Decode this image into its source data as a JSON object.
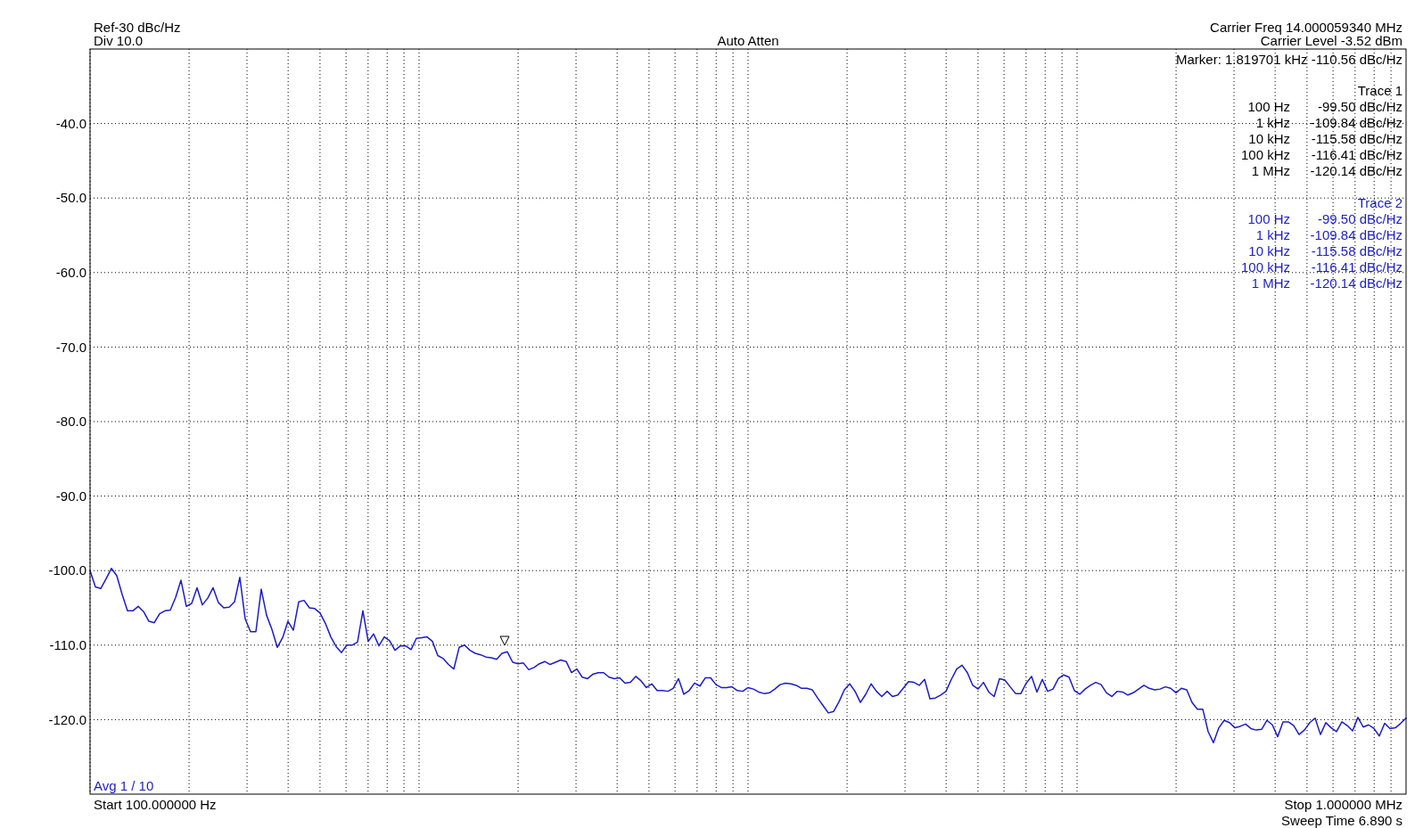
{
  "chart_data": {
    "type": "line",
    "grid": true,
    "tick_labels": "y",
    "line_style": "solid",
    "categories": [
      null,
      null,
      null,
      null,
      null,
      null,
      null,
      null,
      null,
      null,
      null,
      null,
      null,
      null,
      null,
      null,
      null,
      null,
      null,
      null,
      null,
      null,
      null,
      null,
      null,
      null,
      null,
      null,
      null,
      null,
      null,
      null,
      null,
      null,
      null,
      null,
      null,
      null,
      null,
      null,
      null,
      null,
      null,
      null,
      null,
      null,
      null,
      null,
      null,
      null,
      null,
      null,
      null,
      null,
      null,
      null,
      null,
      null,
      null,
      null,
      null,
      null,
      null,
      null,
      null,
      null,
      null,
      null,
      null,
      null,
      null,
      null,
      null,
      null,
      null,
      null,
      null,
      null,
      null,
      null,
      null,
      null,
      null,
      null,
      null,
      null,
      null,
      null,
      null,
      null,
      null,
      null,
      null,
      null,
      null,
      null,
      null,
      null,
      null,
      null,
      null,
      null,
      null,
      null,
      null,
      null,
      null,
      null,
      null,
      null,
      null,
      null,
      null,
      null,
      null,
      null,
      null,
      null,
      null,
      null,
      null,
      null,
      null,
      null,
      null,
      null,
      null,
      null,
      null,
      null,
      null,
      null,
      null,
      null,
      null,
      null,
      null,
      null,
      null,
      null,
      null,
      null,
      null,
      null,
      null,
      null,
      null,
      null,
      null,
      null,
      null,
      null,
      null,
      null,
      null,
      null,
      null,
      null,
      null,
      null,
      null,
      null,
      null,
      null,
      null,
      null,
      null,
      null,
      null,
      null,
      null,
      null,
      null,
      null,
      null,
      null,
      null,
      null,
      null,
      null,
      null,
      null,
      null,
      null,
      null,
      null,
      null,
      null,
      null,
      null,
      null,
      null,
      null,
      null,
      null,
      null,
      null,
      null,
      null,
      null,
      null,
      null,
      null,
      null,
      null,
      null,
      null,
      null,
      null,
      null,
      null,
      null,
      null,
      null,
      null,
      null,
      null,
      null,
      null,
      null,
      null,
      null,
      null,
      null,
      null,
      null,
      null,
      null,
      null,
      null,
      null,
      null,
      null,
      null,
      null,
      null,
      null,
      null,
      null,
      null,
      null,
      null,
      null,
      null,
      null,
      null,
      null
    ],
    "ylim": [
      -130,
      -30
    ],
    "yticks": [
      {
        "value": -40,
        "label": "-40.0"
      },
      {
        "value": -50,
        "label": "-50.0"
      },
      {
        "value": -60,
        "label": "-60.0"
      },
      {
        "value": -70,
        "label": "-70.0"
      },
      {
        "value": -80,
        "label": "-80.0"
      },
      {
        "value": -90,
        "label": "-90.0"
      },
      {
        "value": -100,
        "label": "-100.0"
      },
      {
        "value": -110,
        "label": "-110.0"
      },
      {
        "value": -120,
        "label": "-120.0"
      }
    ],
    "series": [
      {
        "color": "#1c1cc8",
        "values": [
          -100,
          -102.2,
          -102.4,
          -101.1,
          -99.7,
          -100.7,
          -103.2,
          -105.4,
          -105.4,
          -104.8,
          -105.5,
          -106.8,
          -107.0,
          -105.8,
          -105.4,
          -105.3,
          -103.6,
          -101.3,
          -104.8,
          -104.4,
          -102.3,
          -104.6,
          -103.7,
          -102.3,
          -104.3,
          -105.0,
          -104.9,
          -104.2,
          -100.9,
          -106.5,
          -108.2,
          -108.2,
          -102.5,
          -106.0,
          -107.9,
          -110.3,
          -109,
          -106.8,
          -108,
          -104.2,
          -104.0,
          -105.0,
          -105.1,
          -105.7,
          -107.1,
          -108.9,
          -110.2,
          -111.0,
          -110.0,
          -110.0,
          -109.6,
          -105.4,
          -109.5,
          -108.5,
          -110.1,
          -108.9,
          -109.4,
          -110.7,
          -110.1,
          -110.1,
          -110.6,
          -109.1,
          -109.0,
          -108.9,
          -109.5,
          -111.4,
          -111.8,
          -112.6,
          -113.2,
          -110.3,
          -110.0,
          -110.7,
          -111.1,
          -111.3,
          -111.6,
          -111.7,
          -111.9,
          -111.1,
          -110.9,
          -112.3,
          -112.5,
          -112.4,
          -113.3,
          -113.0,
          -112.5,
          -112.2,
          -112.6,
          -112.3,
          -112.0,
          -112.2,
          -113.7,
          -113.2,
          -114.3,
          -114.5,
          -113.9,
          -113.7,
          -113.7,
          -114.3,
          -114.5,
          -114.4,
          -115.1,
          -115.0,
          -114.2,
          -114.8,
          -115.7,
          -115.2,
          -116.1,
          -116.1,
          -116.2,
          -115.8,
          -114.5,
          -116.6,
          -116.1,
          -115.1,
          -115.5,
          -114.4,
          -114.4,
          -115.3,
          -115.7,
          -115.7,
          -115.6,
          -116.1,
          -116.2,
          -115.7,
          -115.9,
          -116.3,
          -116.5,
          -116.4,
          -115.9,
          -115.3,
          -115.1,
          -115.2,
          -115.4,
          -115.8,
          -115.8,
          -116.0,
          -117.1,
          -118.1,
          -119.1,
          -118.9,
          -117.6,
          -116.0,
          -115.2,
          -116.2,
          -117.7,
          -116.6,
          -115.2,
          -116.2,
          -116.9,
          -116.2,
          -116.9,
          -116.7,
          -115.8,
          -114.9,
          -115.0,
          -115.4,
          -114.6,
          -117.2,
          -117.1,
          -116.7,
          -116.2,
          -114.6,
          -113.2,
          -112.7,
          -113.7,
          -115.4,
          -115.9,
          -115.0,
          -116.3,
          -116.9,
          -114.5,
          -114.7,
          -115.6,
          -116.5,
          -116.5,
          -115.1,
          -114.2,
          -116.3,
          -114.6,
          -116.2,
          -115.9,
          -114.5,
          -114.0,
          -114.3,
          -116.1,
          -116.6,
          -115.9,
          -115.4,
          -115.0,
          -115.3,
          -116.4,
          -116.9,
          -116.2,
          -116.3,
          -116.7,
          -116.4,
          -115.9,
          -115.4,
          -115.8,
          -116.0,
          -115.9,
          -115.6,
          -115.8,
          -116.4,
          -115.8,
          -116.0,
          -117.7,
          -118.6,
          -118.6,
          -121.6,
          -123.1,
          -121.1,
          -120.1,
          -120.4,
          -121.1,
          -120.9,
          -120.6,
          -121.2,
          -121.4,
          -121.3,
          -120.1,
          -120.7,
          -122.3,
          -120.3,
          -120.3,
          -120.8,
          -122.0,
          -121.4,
          -120.4,
          -119.8,
          -122.0,
          -120.4,
          -121.1,
          -121.6,
          -120.3,
          -120.8,
          -121.5,
          -119.7,
          -121.0,
          -120.7,
          -121.2,
          -122.2,
          -120.5,
          -121.2,
          -121.1,
          -120.5,
          -119.8
        ]
      }
    ],
    "annotations": [
      "Ref-30 dBc/Hz",
      "Div 10.0",
      "Auto Atten",
      "Carrier Freq 14.000059340 MHz",
      "Carrier Level -3.52 dBm",
      "Marker: 1.819701 kHz -110.56 dBc/Hz",
      "Trace 1",
      "100 Hz",
      "-99.50 dBc/Hz",
      "1 kHz",
      "-109.84 dBc/Hz",
      "10 kHz",
      "-115.58 dBc/Hz",
      "100 kHz",
      "-116.41 dBc/Hz",
      "1 MHz",
      "-120.14 dBc/Hz",
      "Trace 2",
      "100 Hz",
      "-99.50 dBc/Hz",
      "1 kHz",
      "-109.84 dBc/Hz",
      "10 kHz",
      "-115.58 dBc/Hz",
      "100 kHz",
      "-116.41 dBc/Hz",
      "1 MHz",
      "-120.14 dBc/Hz",
      "Avg 1 / 10",
      "Start 100.000000 Hz",
      "Stop 1.000000 MHz",
      "Sweep Time 6.890 s"
    ]
  }
}
